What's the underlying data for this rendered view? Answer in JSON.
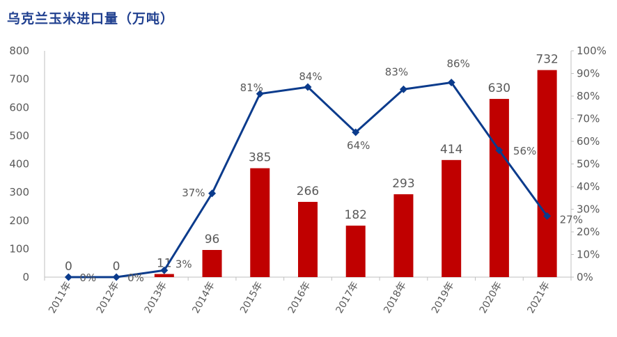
{
  "title": "乌克兰玉米进口量（万吨）",
  "chart_data": {
    "type": "bar",
    "title": "乌克兰玉米进口量（万吨）",
    "categories": [
      "2011年",
      "2012年",
      "2013年",
      "2014年",
      "2015年",
      "2016年",
      "2017年",
      "2018年",
      "2019年",
      "2020年",
      "2021年"
    ],
    "series": [
      {
        "type": "bar",
        "axis": "left",
        "values": [
          0,
          0,
          11,
          96,
          385,
          266,
          182,
          293,
          414,
          630,
          732
        ],
        "color": "#c00000"
      },
      {
        "type": "line",
        "axis": "right",
        "values": [
          0,
          0,
          3,
          37,
          81,
          84,
          64,
          83,
          86,
          56,
          27
        ],
        "color": "#0b3b8c"
      }
    ],
    "bar_labels": [
      "0",
      "0",
      "11",
      "96",
      "385",
      "266",
      "182",
      "293",
      "414",
      "630",
      "732"
    ],
    "line_labels": [
      "0%",
      "0%",
      "3%",
      "37%",
      "81%",
      "84%",
      "64%",
      "83%",
      "86%",
      "56%",
      "27%"
    ],
    "y_left": {
      "min": 0,
      "max": 800,
      "step": 100,
      "ticks": [
        "0",
        "100",
        "200",
        "300",
        "400",
        "500",
        "600",
        "700",
        "800"
      ]
    },
    "y_right": {
      "min": 0,
      "max": 100,
      "step": 10,
      "ticks": [
        "0%",
        "10%",
        "20%",
        "30%",
        "40%",
        "50%",
        "60%",
        "70%",
        "80%",
        "90%",
        "100%"
      ]
    },
    "grid": false,
    "legend": "none"
  }
}
